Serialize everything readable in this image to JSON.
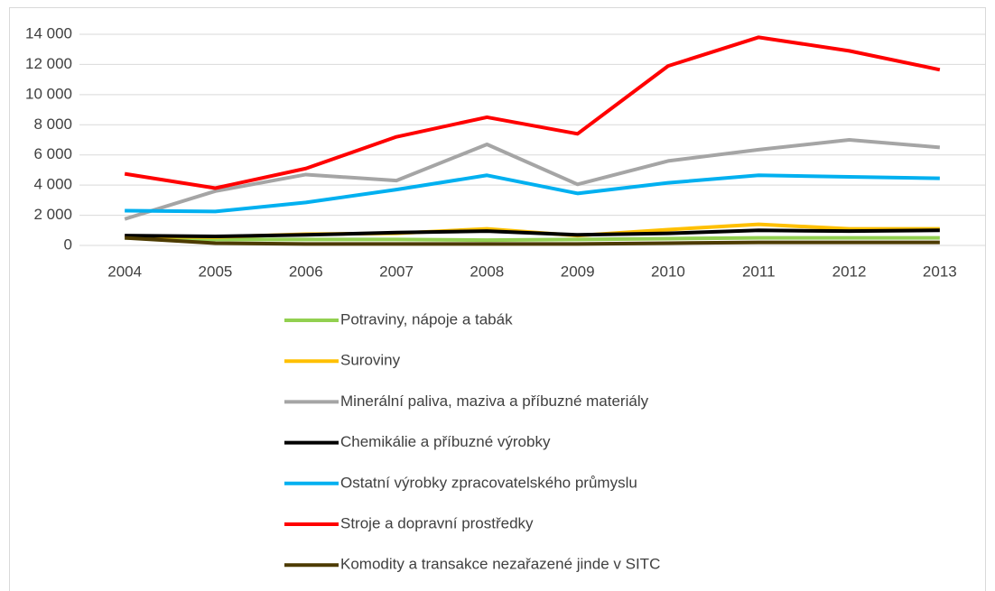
{
  "chart_data": {
    "type": "line",
    "categories": [
      "2004",
      "2005",
      "2006",
      "2007",
      "2008",
      "2009",
      "2010",
      "2011",
      "2012",
      "2013"
    ],
    "series": [
      {
        "name": "Potraviny, nápoje a tabák",
        "color": "#92d050",
        "values": [
          500,
          400,
          400,
          400,
          350,
          400,
          450,
          500,
          500,
          500
        ]
      },
      {
        "name": "Suroviny",
        "color": "#ffc000",
        "values": [
          600,
          550,
          750,
          800,
          1100,
          650,
          1050,
          1400,
          1100,
          1100
        ]
      },
      {
        "name": "Minerální paliva, maziva a příbuzné materiály",
        "color": "#a5a5a5",
        "values": [
          1750,
          3600,
          4700,
          4300,
          6700,
          4050,
          5600,
          6350,
          7000,
          6500
        ]
      },
      {
        "name": "Chemikálie a příbuzné výrobky",
        "color": "#000000",
        "values": [
          650,
          600,
          700,
          850,
          950,
          700,
          800,
          1000,
          950,
          1000
        ]
      },
      {
        "name": "Ostatní výrobky zpracovatelského průmyslu",
        "color": "#00b0f0",
        "values": [
          2300,
          2250,
          2850,
          3700,
          4650,
          3450,
          4150,
          4650,
          4550,
          4450
        ]
      },
      {
        "name": "Stroje a dopravní prostředky",
        "color": "#ff0000",
        "values": [
          4750,
          3800,
          5100,
          7200,
          8500,
          7400,
          11900,
          13800,
          12900,
          11650
        ]
      },
      {
        "name": "Komodity a transakce nezařazené jinde v SITC",
        "color": "#4d3b00",
        "values": [
          500,
          150,
          100,
          100,
          100,
          100,
          150,
          200,
          200,
          200
        ]
      }
    ],
    "ylim": [
      0,
      14000
    ],
    "yticks": [
      0,
      {
        "value": 2000,
        "label": "2 000"
      },
      {
        "value": 4000,
        "label": "4 000"
      },
      {
        "value": 6000,
        "label": "6 000"
      },
      {
        "value": 8000,
        "label": "8 000"
      },
      {
        "value": 10000,
        "label": "10 000"
      },
      {
        "value": 12000,
        "label": "12 000"
      },
      {
        "value": 14000,
        "label": "14 000"
      }
    ],
    "grid": true,
    "legend": "bottom"
  }
}
